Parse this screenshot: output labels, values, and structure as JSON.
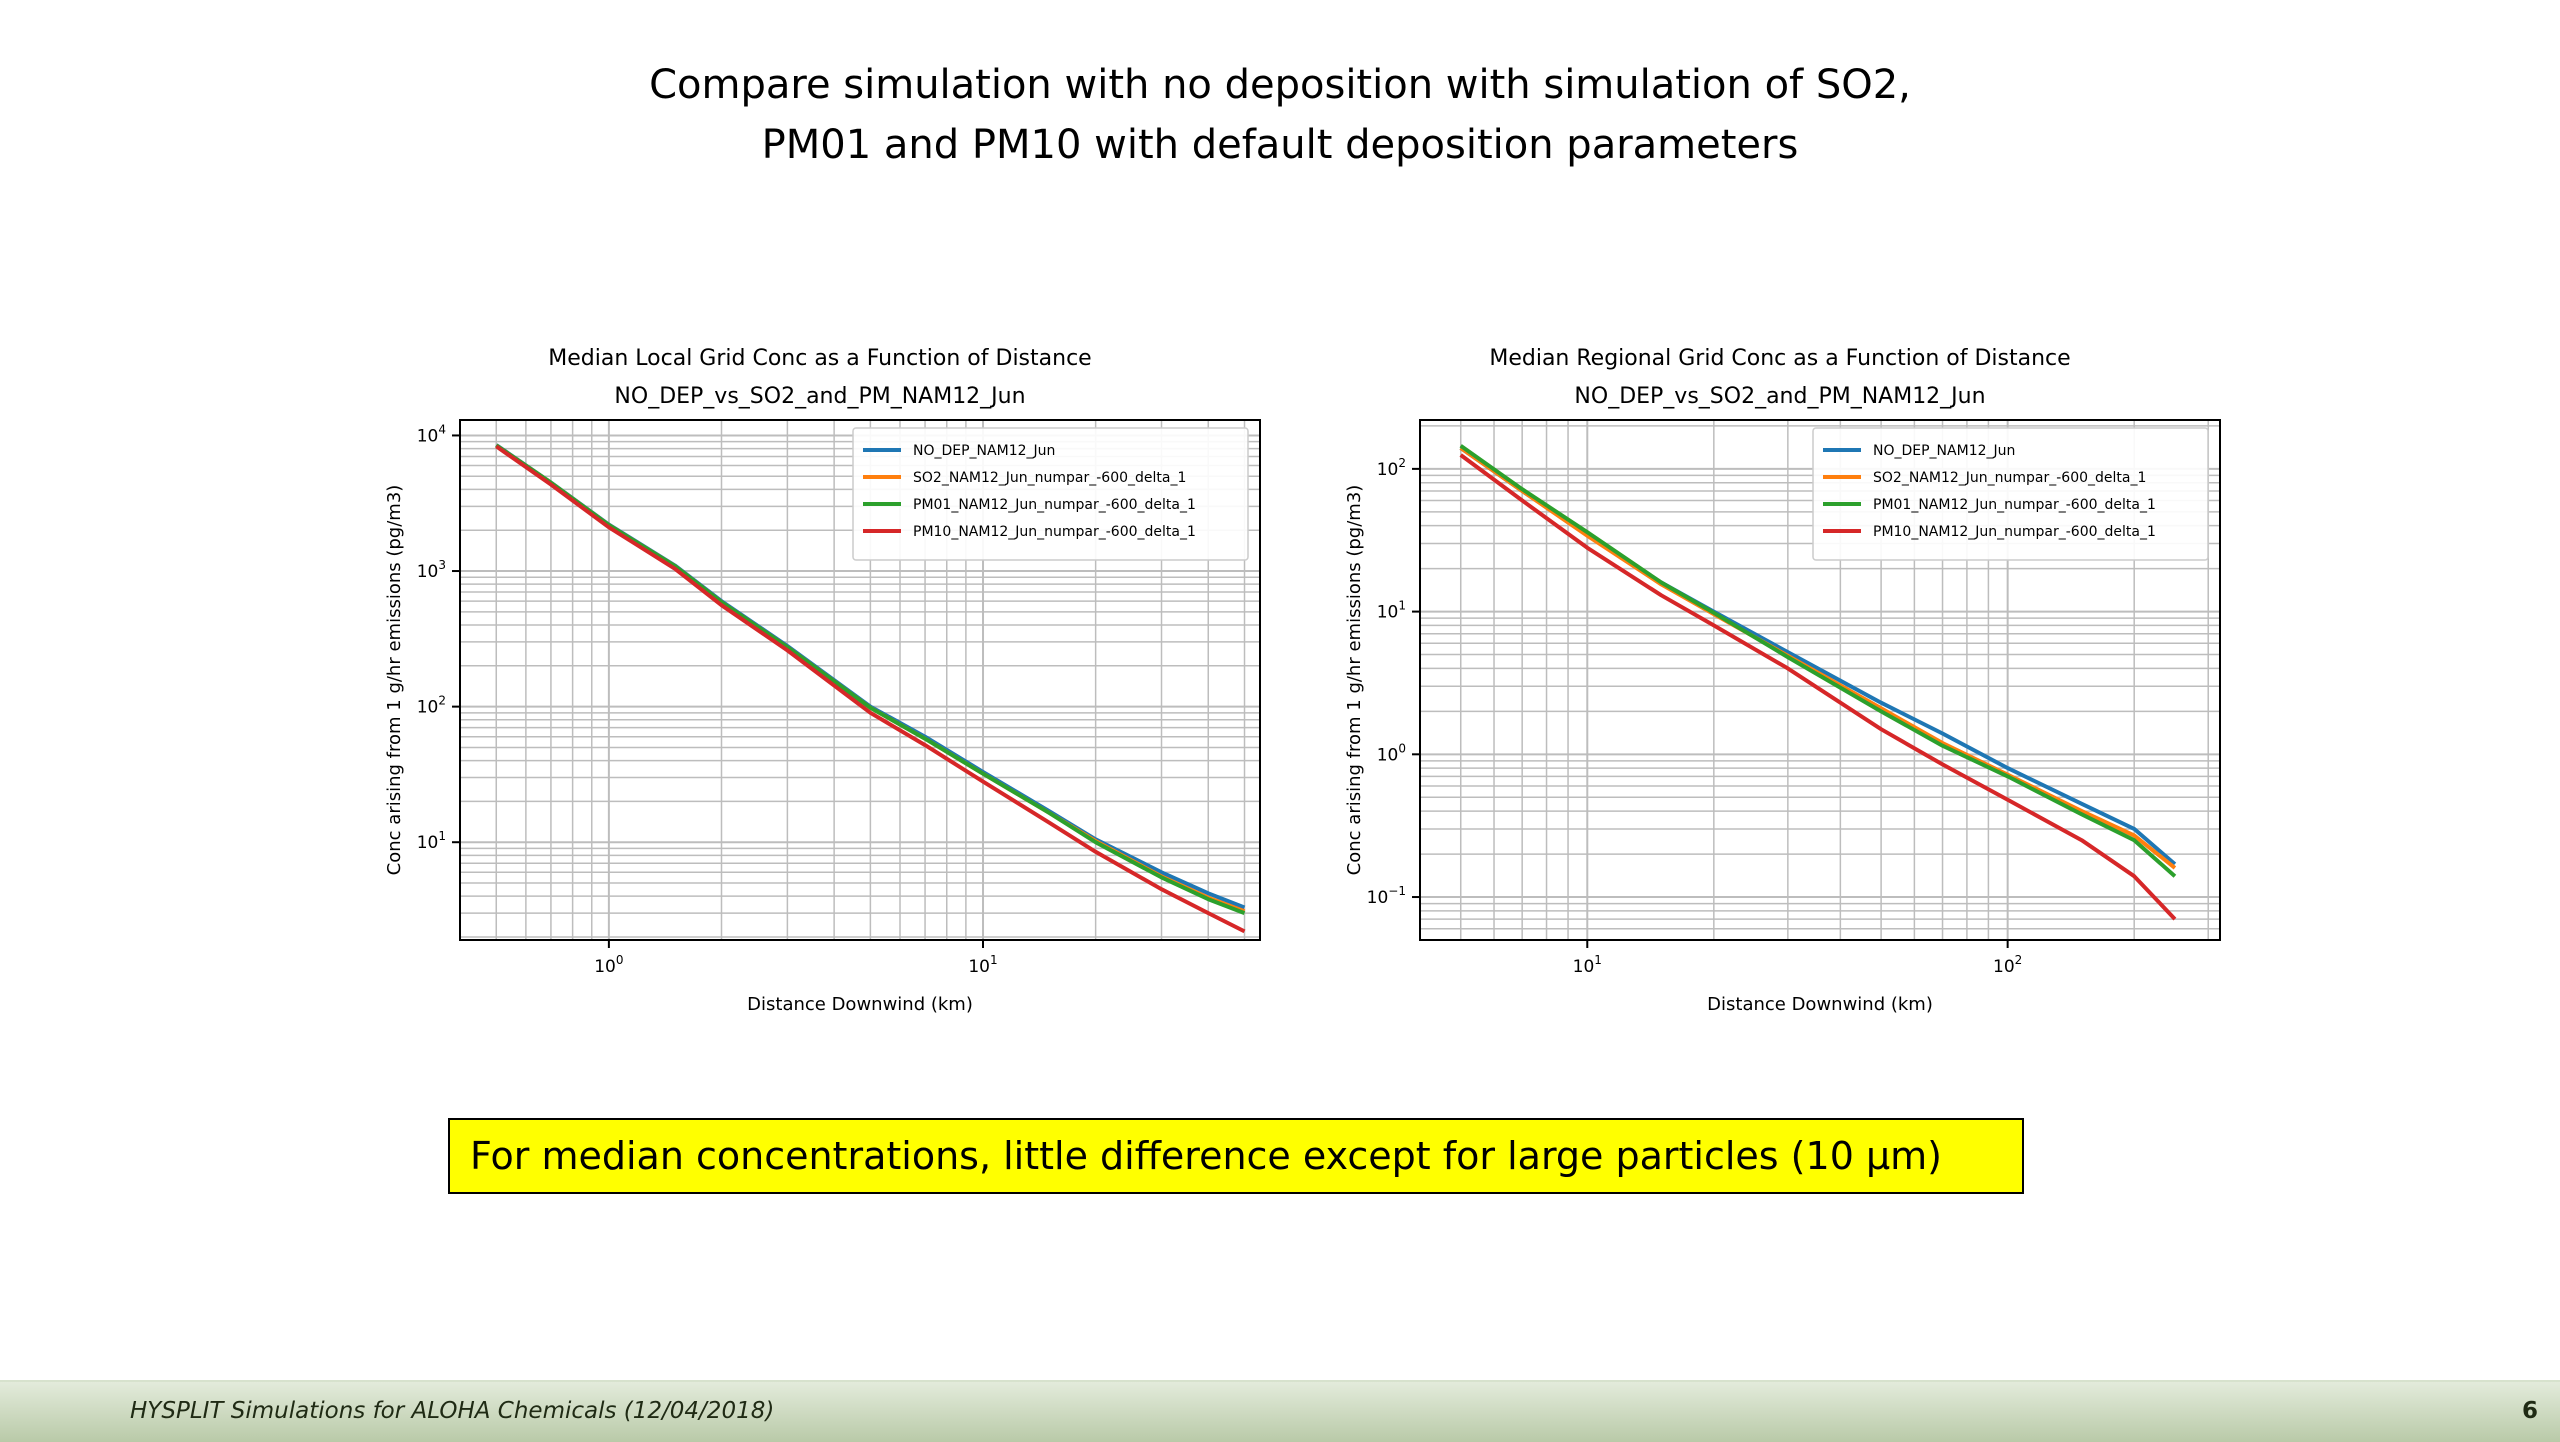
{
  "slide": {
    "title_lines": [
      "Compare simulation with no deposition with simulation of SO2,",
      "PM01 and PM10 with default deposition parameters"
    ],
    "callout": "For median concentrations, little difference except for large particles (10 µm)",
    "footer": "HYSPLIT Simulations for ALOHA Chemicals (12/04/2018)",
    "page_number": "6"
  },
  "chart_data": [
    {
      "type": "line",
      "title": "Median Local Grid Conc as a Function of Distance",
      "subtitle": "NO_DEP_vs_SO2_and_PM_NAM12_Jun",
      "xlabel": "Distance Downwind (km)",
      "ylabel": "Conc arising from 1 g/hr emissions (pg/m3)",
      "xscale": "log",
      "yscale": "log",
      "xlim": [
        0.4,
        55
      ],
      "ylim": [
        1.9,
        13000
      ],
      "xticks": [
        {
          "value": 1,
          "base": "10",
          "exp": "0"
        },
        {
          "value": 10,
          "base": "10",
          "exp": "1"
        }
      ],
      "yticks": [
        {
          "value": 10,
          "base": "10",
          "exp": "1"
        },
        {
          "value": 100,
          "base": "10",
          "exp": "2"
        },
        {
          "value": 1000,
          "base": "10",
          "exp": "3"
        },
        {
          "value": 10000,
          "base": "10",
          "exp": "4"
        }
      ],
      "grid": true,
      "legend_position": "top-right",
      "series": [
        {
          "name": "NO_DEP_NAM12_Jun",
          "color": "#1f77b4",
          "x": [
            0.5,
            0.7,
            1,
            1.5,
            2,
            3,
            5,
            7,
            10,
            15,
            20,
            30,
            40,
            50
          ],
          "y": [
            8500,
            4500,
            2200,
            1100,
            600,
            280,
            100,
            60,
            33,
            17,
            10.5,
            6,
            4.2,
            3.3
          ]
        },
        {
          "name": "SO2_NAM12_Jun_numpar_-600_delta_1",
          "color": "#ff7f0e",
          "x": [
            0.5,
            0.7,
            1,
            1.5,
            2,
            3,
            5,
            7,
            10,
            15,
            20,
            30,
            40,
            50
          ],
          "y": [
            8450,
            4480,
            2180,
            1090,
            590,
            275,
            98,
            58,
            32,
            16.5,
            10.2,
            5.6,
            3.9,
            3.1
          ]
        },
        {
          "name": "PM01_NAM12_Jun_numpar_-600_delta_1",
          "color": "#2ca02c",
          "x": [
            0.5,
            0.7,
            1,
            1.5,
            2,
            3,
            5,
            7,
            10,
            15,
            20,
            30,
            40,
            50
          ],
          "y": [
            8450,
            4480,
            2180,
            1090,
            590,
            275,
            98,
            58,
            32,
            16.5,
            10,
            5.5,
            3.8,
            3
          ]
        },
        {
          "name": "PM10_NAM12_Jun_numpar_-600_delta_1",
          "color": "#d62728",
          "x": [
            0.5,
            0.7,
            1,
            1.5,
            2,
            3,
            5,
            7,
            10,
            15,
            20,
            30,
            40,
            50
          ],
          "y": [
            8300,
            4350,
            2100,
            1040,
            560,
            260,
            90,
            52,
            28,
            14,
            8.5,
            4.5,
            3,
            2.2
          ]
        }
      ]
    },
    {
      "type": "line",
      "title": "Median Regional Grid Conc as a Function of Distance",
      "subtitle": "NO_DEP_vs_SO2_and_PM_NAM12_Jun",
      "xlabel": "Distance Downwind (km)",
      "ylabel": "Conc arising from 1 g/hr emissions (pg/m3)",
      "xscale": "log",
      "yscale": "log",
      "xlim": [
        4,
        320
      ],
      "ylim": [
        0.05,
        220
      ],
      "xticks": [
        {
          "value": 10,
          "base": "10",
          "exp": "1"
        },
        {
          "value": 100,
          "base": "10",
          "exp": "2"
        }
      ],
      "yticks": [
        {
          "value": 0.1,
          "base": "10",
          "exp": "−1"
        },
        {
          "value": 1,
          "base": "10",
          "exp": "0"
        },
        {
          "value": 10,
          "base": "10",
          "exp": "1"
        },
        {
          "value": 100,
          "base": "10",
          "exp": "2"
        }
      ],
      "grid": true,
      "legend_position": "top-right",
      "series": [
        {
          "name": "NO_DEP_NAM12_Jun",
          "color": "#1f77b4",
          "x": [
            5,
            7,
            10,
            15,
            20,
            30,
            50,
            70,
            100,
            150,
            200,
            250
          ],
          "y": [
            140,
            70,
            35,
            16,
            10,
            5.2,
            2.3,
            1.4,
            0.8,
            0.45,
            0.3,
            0.17
          ]
        },
        {
          "name": "SO2_NAM12_Jun_numpar_-600_delta_1",
          "color": "#ff7f0e",
          "x": [
            5,
            7,
            10,
            15,
            20,
            30,
            50,
            70,
            100,
            150,
            200,
            250
          ],
          "y": [
            140,
            70,
            34,
            15.5,
            9.6,
            4.9,
            2.1,
            1.2,
            0.72,
            0.4,
            0.27,
            0.16
          ]
        },
        {
          "name": "PM01_NAM12_Jun_numpar_-600_delta_1",
          "color": "#2ca02c",
          "x": [
            5,
            7,
            10,
            15,
            20,
            30,
            50,
            70,
            100,
            150,
            200,
            250
          ],
          "y": [
            145,
            72,
            36,
            16,
            9.8,
            4.8,
            2,
            1.15,
            0.7,
            0.38,
            0.25,
            0.14
          ]
        },
        {
          "name": "PM10_NAM12_Jun_numpar_-600_delta_1",
          "color": "#d62728",
          "x": [
            5,
            7,
            10,
            15,
            20,
            30,
            50,
            70,
            100,
            150,
            200,
            250
          ],
          "y": [
            125,
            60,
            28,
            13,
            8,
            4,
            1.5,
            0.85,
            0.48,
            0.25,
            0.14,
            0.07
          ]
        }
      ]
    }
  ]
}
